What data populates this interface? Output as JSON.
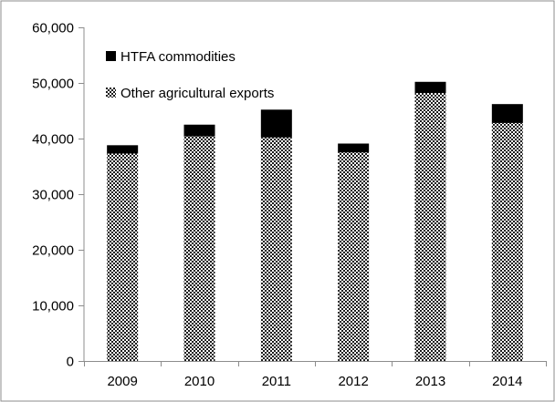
{
  "chart_data": {
    "type": "bar",
    "stacked": true,
    "categories": [
      "2009",
      "2010",
      "2011",
      "2012",
      "2013",
      "2014"
    ],
    "series": [
      {
        "name": "Other agricultural exports",
        "values": [
          37300,
          40400,
          40200,
          37500,
          48200,
          42800
        ],
        "color": "#000000",
        "pattern": "checker"
      },
      {
        "name": "HTFA commodities",
        "values": [
          1500,
          2100,
          5000,
          1600,
          2000,
          3400
        ],
        "color": "#000000",
        "pattern": "solid"
      }
    ],
    "ylim": [
      0,
      60000
    ],
    "yticks": [
      "0",
      "10,000",
      "20,000",
      "30,000",
      "40,000",
      "50,000",
      "60,000"
    ],
    "ytick_values": [
      0,
      10000,
      20000,
      30000,
      40000,
      50000,
      60000
    ],
    "legend": {
      "placement": "top-left",
      "order": [
        "HTFA commodities",
        "Other agricultural exports"
      ]
    },
    "grid": false,
    "title": "",
    "xlabel": "",
    "ylabel": ""
  }
}
